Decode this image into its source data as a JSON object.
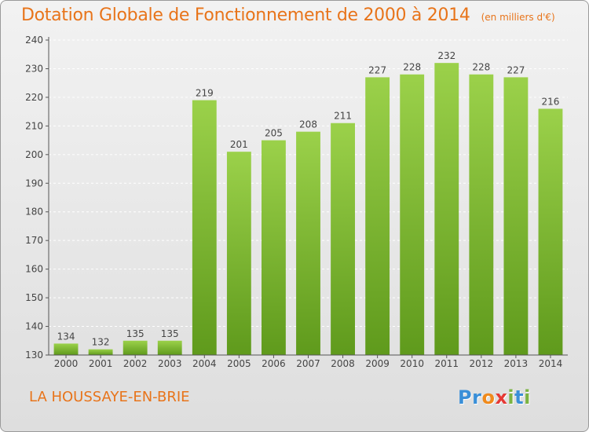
{
  "header": {
    "title": "Dotation Globale de Fonctionnement de 2000 à 2014",
    "unit": "(en milliers d'€)"
  },
  "footer": {
    "commune": "LA HOUSSAYE-EN-BRIE",
    "logo_text": "Proxiti",
    "logo_letters": [
      "P",
      "r",
      "o",
      "x",
      "i",
      "t",
      "i"
    ],
    "logo_colors": [
      "#3a8fd8",
      "#3a8fd8",
      "#f08a1c",
      "#e53935",
      "#7cb342",
      "#3a8fd8",
      "#7cb342"
    ]
  },
  "chart_data": {
    "type": "bar",
    "categories": [
      "2000",
      "2001",
      "2002",
      "2003",
      "2004",
      "2005",
      "2006",
      "2007",
      "2008",
      "2009",
      "2010",
      "2011",
      "2012",
      "2013",
      "2014"
    ],
    "values": [
      134,
      132,
      135,
      135,
      219,
      201,
      205,
      208,
      211,
      227,
      228,
      232,
      228,
      227,
      216
    ],
    "ylim": [
      130,
      240
    ],
    "yticks": [
      130,
      140,
      150,
      160,
      170,
      180,
      190,
      200,
      210,
      220,
      230,
      240
    ],
    "grid": true,
    "bar_color": "#7ab52a"
  }
}
